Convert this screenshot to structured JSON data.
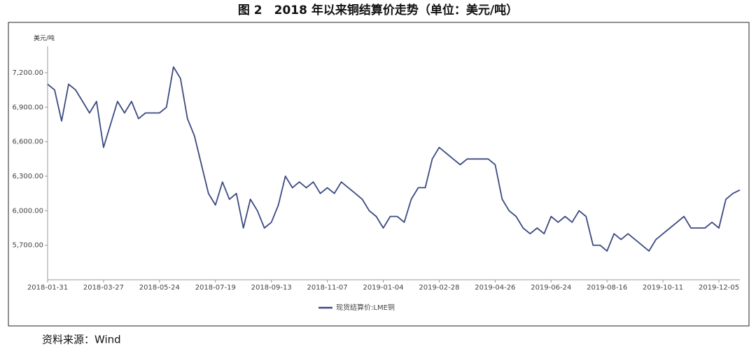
{
  "chart_data": {
    "type": "line",
    "title": "图 2　2018 年以来铜结算价走势（单位：美元/吨）",
    "y_unit": "美元/吨",
    "source": "资料来源：Wind",
    "categories": [
      "2018-01-31",
      null,
      null,
      null,
      null,
      null,
      null,
      null,
      "2018-03-27",
      null,
      null,
      null,
      null,
      null,
      null,
      null,
      "2018-05-24",
      null,
      null,
      null,
      null,
      null,
      null,
      null,
      "2018-07-19",
      null,
      null,
      null,
      null,
      null,
      null,
      null,
      "2018-09-13",
      null,
      null,
      null,
      null,
      null,
      null,
      null,
      "2018-11-07",
      null,
      null,
      null,
      null,
      null,
      null,
      null,
      "2019-01-04",
      null,
      null,
      null,
      null,
      null,
      null,
      null,
      "2019-02-28",
      null,
      null,
      null,
      null,
      null,
      null,
      null,
      "2019-04-26",
      null,
      null,
      null,
      null,
      null,
      null,
      null,
      "2019-06-24",
      null,
      null,
      null,
      null,
      null,
      null,
      null,
      "2019-08-16",
      null,
      null,
      null,
      null,
      null,
      null,
      null,
      "2019-10-11",
      null,
      null,
      null,
      null,
      null,
      null,
      null,
      "2019-12-05",
      null,
      null,
      null
    ],
    "series": [
      {
        "name": "现货结算价:LME铜",
        "color": "#3b4a82",
        "values": [
          7100,
          7050,
          6780,
          7100,
          7050,
          6950,
          6850,
          6950,
          6550,
          6750,
          6950,
          6850,
          6950,
          6800,
          6850,
          6850,
          6850,
          6900,
          7250,
          7150,
          6800,
          6650,
          6400,
          6150,
          6050,
          6250,
          6100,
          6150,
          5850,
          6100,
          6000,
          5850,
          5900,
          6050,
          6300,
          6200,
          6250,
          6200,
          6250,
          6150,
          6200,
          6150,
          6250,
          6200,
          6150,
          6100,
          6000,
          5950,
          5850,
          5950,
          5950,
          5900,
          6100,
          6200,
          6200,
          6450,
          6550,
          6500,
          6450,
          6400,
          6450,
          6450,
          6450,
          6450,
          6400,
          6100,
          6000,
          5950,
          5850,
          5800,
          5850,
          5800,
          5950,
          5900,
          5950,
          5900,
          6000,
          5950,
          5700,
          5700,
          5650,
          5800,
          5750,
          5800,
          5750,
          5700,
          5650,
          5750,
          5800,
          5850,
          5900,
          5950,
          5850,
          5850,
          5850,
          5900,
          5850,
          6100,
          6150,
          6180
        ]
      }
    ],
    "ylim": [
      5400,
      7400
    ],
    "yticks": [
      {
        "value": 5700,
        "label": "5,700.00"
      },
      {
        "value": 6000,
        "label": "6,000.00"
      },
      {
        "value": 6300,
        "label": "6,300.00"
      },
      {
        "value": 6600,
        "label": "6,600.00"
      },
      {
        "value": 6900,
        "label": "6,900.00"
      },
      {
        "value": 7200,
        "label": "7,200.00"
      }
    ],
    "grid": false,
    "legend": "bottom"
  }
}
